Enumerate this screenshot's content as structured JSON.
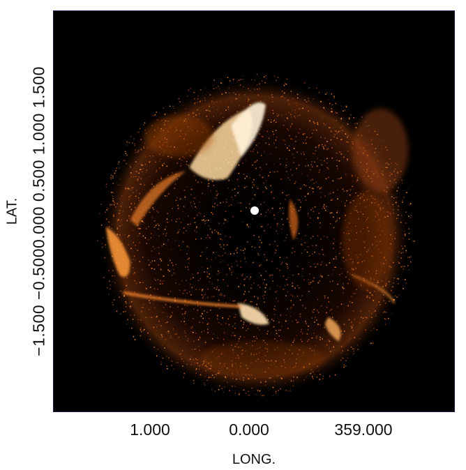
{
  "axes": {
    "y_title": "LAT.",
    "y_ticks_line": "−1.500          −0.5000.000 0.500 1.000 1.500",
    "x_title": "LONG.",
    "x_ticks": [
      "1.000",
      "0.000",
      "359.000"
    ]
  },
  "colors": {
    "background": "#000000",
    "emission_core": "#fff5d6",
    "emission_mid": "#ff9a3a",
    "emission_faint": "#c2561a"
  },
  "image": {
    "subject": "supernova-remnant-xray-map"
  }
}
